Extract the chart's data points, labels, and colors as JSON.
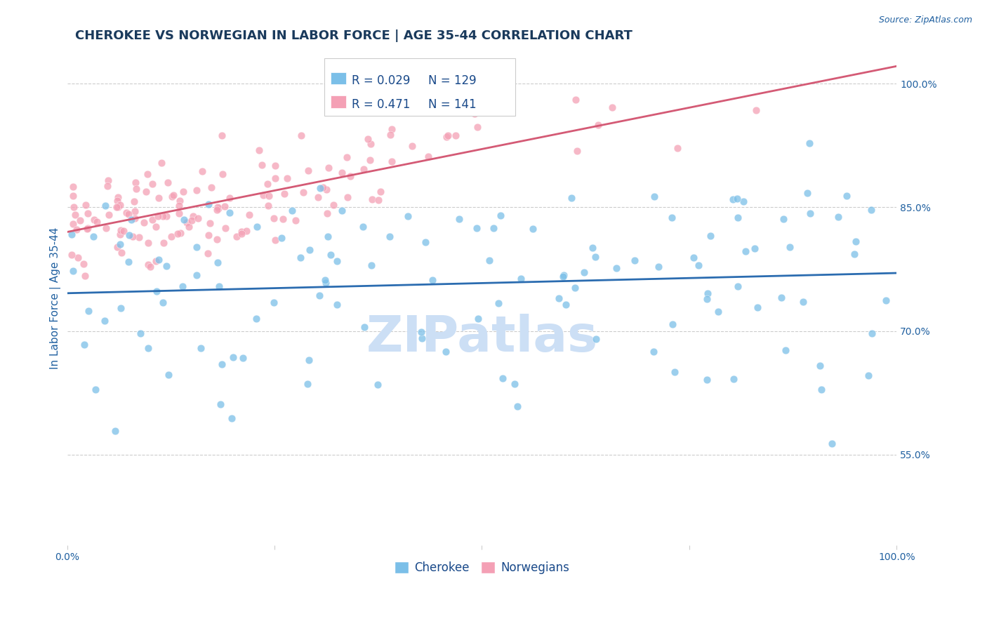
{
  "title": "CHEROKEE VS NORWEGIAN IN LABOR FORCE | AGE 35-44 CORRELATION CHART",
  "source_text": "Source: ZipAtlas.com",
  "ylabel": "In Labor Force | Age 35-44",
  "xlim": [
    0.0,
    1.0
  ],
  "ylim": [
    0.44,
    1.04
  ],
  "yticks": [
    0.55,
    0.7,
    0.85,
    1.0
  ],
  "ytick_labels": [
    "55.0%",
    "70.0%",
    "85.0%",
    "100.0%"
  ],
  "cherokee_R": 0.029,
  "cherokee_N": 129,
  "norwegian_R": 0.471,
  "norwegian_N": 141,
  "cherokee_color": "#7bbfe8",
  "norwegian_color": "#f4a0b5",
  "cherokee_line_color": "#2b6cb0",
  "norwegian_line_color": "#d45a75",
  "background_color": "#ffffff",
  "grid_color": "#cccccc",
  "title_color": "#1a3a5c",
  "axis_label_color": "#2060a0",
  "tick_color": "#2060a0",
  "legend_text_color": "#1a4a8a",
  "watermark_color": "#ccdff5",
  "watermark_text": "ZIPatlas",
  "title_fontsize": 13,
  "axis_label_fontsize": 11,
  "tick_fontsize": 10,
  "legend_fontsize": 12
}
